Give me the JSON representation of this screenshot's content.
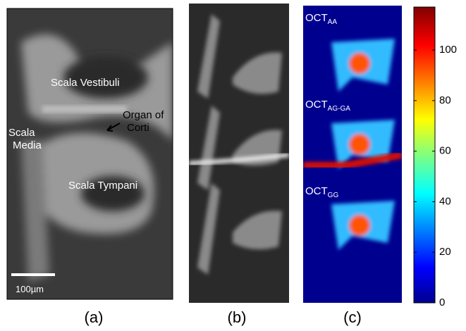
{
  "panels": [
    {
      "label": "(a)",
      "annotations": [
        "Scala Vestibuli",
        "Organ of",
        "Corti",
        "Scala",
        "Media",
        "Scala Tympani"
      ],
      "scale_bar": "100µm"
    },
    {
      "label": "(b)"
    },
    {
      "label": "(c)",
      "annotations": [
        {
          "main": "OCT",
          "sub": "AA"
        },
        {
          "main": "OCT",
          "sub": "AG-GA"
        },
        {
          "main": "OCT",
          "sub": "GG"
        }
      ]
    }
  ],
  "colorbar": {
    "lim": [
      0,
      117
    ],
    "ticks": [
      0,
      20,
      40,
      60,
      80,
      100
    ]
  }
}
